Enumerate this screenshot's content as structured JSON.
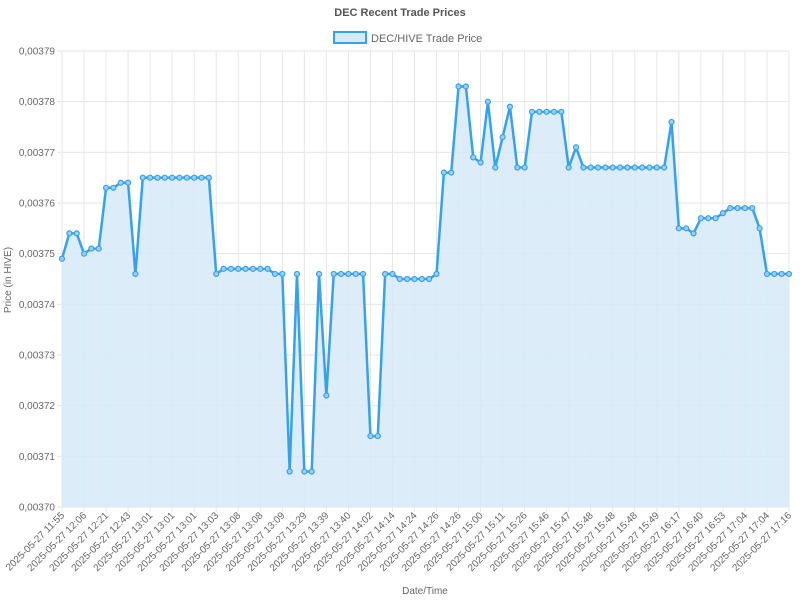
{
  "chart_data": {
    "type": "area",
    "title": "DEC Recent Trade Prices",
    "xlabel": "Date/Time",
    "ylabel": "Price (in HIVE)",
    "ylim": [
      0.0037,
      0.00379
    ],
    "y_ticks": [
      "0,00370",
      "0,00371",
      "0,00372",
      "0,00373",
      "0,00374",
      "0,00375",
      "0,00376",
      "0,00377",
      "0,00378",
      "0,00379"
    ],
    "grid": true,
    "legend_position": "top-center",
    "colors": {
      "line": "#36a2eb",
      "fill": "#d6eaf8",
      "grid": "#e6e6e6"
    },
    "x_tick_labels": [
      "2025-05-27 11:55",
      "2025-05-27 12:06",
      "2025-05-27 12:21",
      "2025-05-27 12:43",
      "2025-05-27 13:01",
      "2025-05-27 13:01",
      "2025-05-27 13:01",
      "2025-05-27 13:03",
      "2025-05-27 13:08",
      "2025-05-27 13:08",
      "2025-05-27 13:09",
      "2025-05-27 13:29",
      "2025-05-27 13:39",
      "2025-05-27 13:40",
      "2025-05-27 14:02",
      "2025-05-27 14:14",
      "2025-05-27 14:24",
      "2025-05-27 14:26",
      "2025-05-27 14:26",
      "2025-05-27 15:00",
      "2025-05-27 15:11",
      "2025-05-27 15:26",
      "2025-05-27 15:46",
      "2025-05-27 15:47",
      "2025-05-27 15:48",
      "2025-05-27 15:48",
      "2025-05-27 15:48",
      "2025-05-27 15:49",
      "2025-05-27 16:17",
      "2025-05-27 16:40",
      "2025-05-27 16:53",
      "2025-05-27 17:04",
      "2025-05-27 17:04",
      "2025-05-27 17:16"
    ],
    "series": [
      {
        "name": "DEC/HIVE Trade Price",
        "values": [
          0.003749,
          0.003754,
          0.003754,
          0.00375,
          0.003751,
          0.003751,
          0.003763,
          0.003763,
          0.003764,
          0.003764,
          0.003746,
          0.003765,
          0.003765,
          0.003765,
          0.003765,
          0.003765,
          0.003765,
          0.003765,
          0.003765,
          0.003765,
          0.003765,
          0.003746,
          0.003747,
          0.003747,
          0.003747,
          0.003747,
          0.003747,
          0.003747,
          0.003747,
          0.003746,
          0.003746,
          0.003707,
          0.003746,
          0.003707,
          0.003707,
          0.003746,
          0.003722,
          0.003746,
          0.003746,
          0.003746,
          0.003746,
          0.003746,
          0.003714,
          0.003714,
          0.003746,
          0.003746,
          0.003745,
          0.003745,
          0.003745,
          0.003745,
          0.003745,
          0.003746,
          0.003766,
          0.003766,
          0.003783,
          0.003783,
          0.003769,
          0.003768,
          0.00378,
          0.003767,
          0.003773,
          0.003779,
          0.003767,
          0.003767,
          0.003778,
          0.003778,
          0.003778,
          0.003778,
          0.003778,
          0.003767,
          0.003771,
          0.003767,
          0.003767,
          0.003767,
          0.003767,
          0.003767,
          0.003767,
          0.003767,
          0.003767,
          0.003767,
          0.003767,
          0.003767,
          0.003767,
          0.003776,
          0.003755,
          0.003755,
          0.003754,
          0.003757,
          0.003757,
          0.003757,
          0.003758,
          0.003759,
          0.003759,
          0.003759,
          0.003759,
          0.003755,
          0.003746,
          0.003746,
          0.003746,
          0.003746
        ]
      }
    ]
  }
}
